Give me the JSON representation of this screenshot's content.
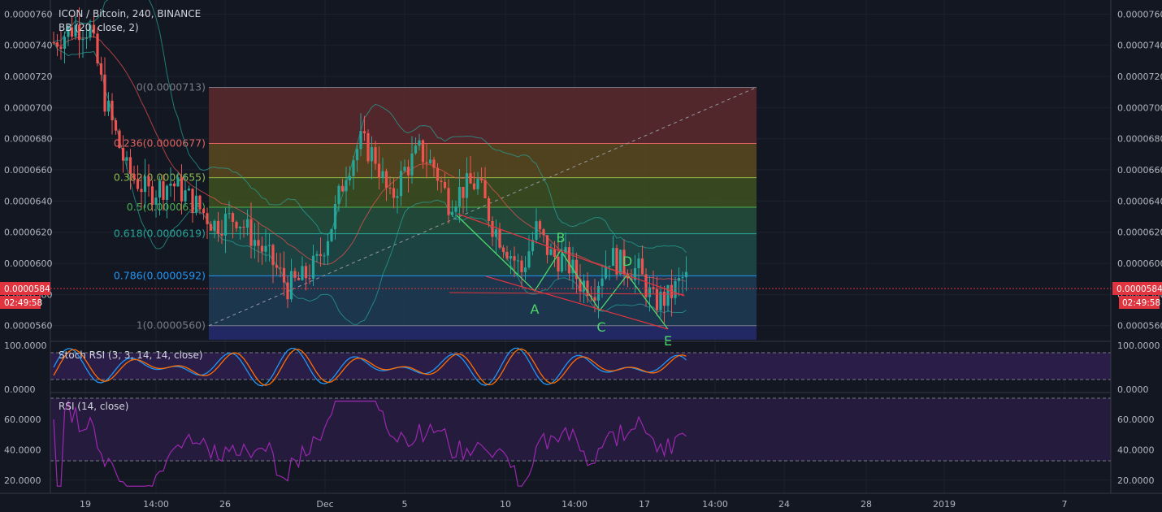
{
  "title": "ICON / Bitcoin, 240, BINANCE",
  "indicators": {
    "bb": "BB (20, close, 2)",
    "stoch": "Stoch RSI (3, 3, 14, 14, close)",
    "rsi": "RSI (14, close)"
  },
  "price_tag": {
    "value": "0.0000584",
    "countdown": "02:49:58"
  },
  "colors": {
    "background": "#131722",
    "up": "#26a69a",
    "down": "#ef5350",
    "fib_bands": [
      "#5d2a2e",
      "#5c4a1f",
      "#3e5121",
      "#24503d",
      "#1f4a47",
      "#1f3c55",
      "#2d2d46"
    ],
    "fib_lines": [
      "#787b86",
      "#e0635f",
      "#8fb84a",
      "#4caf50",
      "#26a69a",
      "#2196f3",
      "#787b86"
    ],
    "stoch_k": "#2196f3",
    "stoch_d": "#ff6d00",
    "rsi_line": "#9c27b0",
    "wave": "#4cd76a",
    "channel": "#e0353f"
  },
  "x_axis": {
    "labels": [
      "19",
      "14:00",
      "26",
      "Dec",
      "5",
      "10",
      "14:00",
      "17",
      "14:00",
      "24",
      "28",
      "2019",
      "7"
    ]
  },
  "price_axis": {
    "labels": [
      "0.0000760",
      "0.0000740",
      "0.0000720",
      "0.0000700",
      "0.0000680",
      "0.0000660",
      "0.0000640",
      "0.0000620",
      "0.0000600",
      "0.0000580",
      "0.0000560"
    ]
  },
  "stoch_axis": {
    "labels": [
      "100.0000",
      "0.0000"
    ]
  },
  "rsi_axis": {
    "labels": [
      "60.0000",
      "40.0000",
      "20.0000"
    ]
  },
  "fib_levels": [
    {
      "label": "0(0.0000713)",
      "price": 7.13e-05
    },
    {
      "label": "0.236(0.0000677)",
      "price": 6.77e-05
    },
    {
      "label": "0.382(0.0000655)",
      "price": 6.55e-05
    },
    {
      "label": "0.5(0.0000636)",
      "price": 6.36e-05
    },
    {
      "label": "0.618(0.0000619)",
      "price": 6.19e-05
    },
    {
      "label": "0.786(0.0000592)",
      "price": 5.92e-05
    },
    {
      "label": "1(0.0000560)",
      "price": 5.6e-05
    }
  ],
  "wave_labels": [
    "A",
    "B",
    "C",
    "D",
    "E"
  ],
  "chart_data": {
    "type": "candlestick",
    "title": "ICON / Bitcoin, 240, BINANCE",
    "ylim": [
      5.51e-05,
      7.68e-05
    ],
    "last_price": 5.84e-05,
    "close_series": [
      {
        "t": 0,
        "close": 7.42e-05
      },
      {
        "t": 6,
        "close": 7.52e-05
      },
      {
        "t": 10,
        "close": 7.5e-05
      },
      {
        "t": 14,
        "close": 7.05e-05
      },
      {
        "t": 20,
        "close": 6.6e-05
      },
      {
        "t": 26,
        "close": 6.45e-05
      },
      {
        "t": 32,
        "close": 6.52e-05
      },
      {
        "t": 38,
        "close": 6.4e-05
      },
      {
        "t": 44,
        "close": 6.25e-05
      },
      {
        "t": 50,
        "close": 6.3e-05
      },
      {
        "t": 56,
        "close": 6.12e-05
      },
      {
        "t": 60,
        "close": 6e-05
      },
      {
        "t": 64,
        "close": 5.85e-05
      },
      {
        "t": 68,
        "close": 5.9e-05
      },
      {
        "t": 72,
        "close": 6e-05
      },
      {
        "t": 76,
        "close": 6.25e-05
      },
      {
        "t": 80,
        "close": 6.6e-05
      },
      {
        "t": 84,
        "close": 6.78e-05
      },
      {
        "t": 88,
        "close": 6.68e-05
      },
      {
        "t": 92,
        "close": 6.4e-05
      },
      {
        "t": 96,
        "close": 6.6e-05
      },
      {
        "t": 100,
        "close": 6.72e-05
      },
      {
        "t": 104,
        "close": 6.62e-05
      },
      {
        "t": 108,
        "close": 6.4e-05
      },
      {
        "t": 112,
        "close": 6.48e-05
      },
      {
        "t": 116,
        "close": 6.52e-05
      },
      {
        "t": 120,
        "close": 6.25e-05
      },
      {
        "t": 124,
        "close": 6.1e-05
      },
      {
        "t": 128,
        "close": 5.95e-05
      },
      {
        "t": 132,
        "close": 6.22e-05
      },
      {
        "t": 136,
        "close": 6.05e-05
      },
      {
        "t": 140,
        "close": 6.02e-05
      },
      {
        "t": 144,
        "close": 5.88e-05
      },
      {
        "t": 148,
        "close": 5.85e-05
      },
      {
        "t": 152,
        "close": 6.05e-05
      },
      {
        "t": 156,
        "close": 5.98e-05
      },
      {
        "t": 160,
        "close": 5.95e-05
      },
      {
        "t": 164,
        "close": 5.75e-05
      },
      {
        "t": 168,
        "close": 5.78e-05
      },
      {
        "t": 172,
        "close": 5.9e-05
      }
    ],
    "stoch_rsi": {
      "ylim": [
        0,
        100
      ]
    },
    "rsi": {
      "ylim": [
        14,
        75
      ],
      "bands": [
        70,
        30
      ]
    }
  }
}
